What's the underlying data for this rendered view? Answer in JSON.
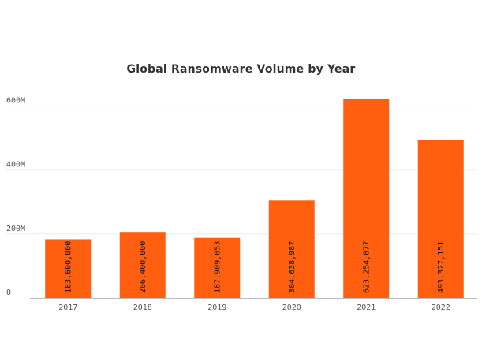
{
  "chart_data": {
    "type": "bar",
    "title": "Global Ransomware Volume by Year",
    "categories": [
      "2017",
      "2018",
      "2019",
      "2020",
      "2021",
      "2022"
    ],
    "values": [
      183600000,
      206400000,
      187909053,
      304638987,
      623254877,
      493327151
    ],
    "data_labels": [
      "183,600,000",
      "206,400,000",
      "187,909,053",
      "304,638,987",
      "623,254,877",
      "493,327,151"
    ],
    "y_ticks": [
      {
        "value": 0,
        "label": "0"
      },
      {
        "value": 200000000,
        "label": "200M"
      },
      {
        "value": 400000000,
        "label": "400M"
      },
      {
        "value": 600000000,
        "label": "600M"
      }
    ],
    "ylim": [
      0,
      650000000
    ],
    "grid": true,
    "legend": "none",
    "xlabel": "",
    "ylabel": ""
  },
  "colors": {
    "bar": "#ff5f0f",
    "grid": "#eeeeee",
    "baseline": "#bbbbbb",
    "tick_text": "#555555",
    "title_text": "#333333",
    "data_label_text": "#111111"
  }
}
